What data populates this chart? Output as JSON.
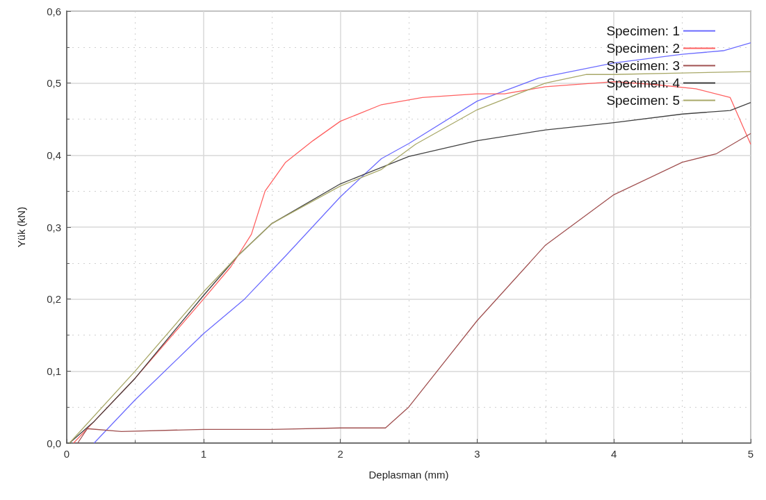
{
  "chart_data": {
    "type": "line",
    "xlabel": "Deplasman (mm)",
    "ylabel": "Yük (kN)",
    "xlim": [
      0,
      5
    ],
    "xticks": [
      0,
      1,
      2,
      3,
      4,
      5
    ],
    "ylim": [
      0,
      0.6
    ],
    "yticks": [
      {
        "value": 0,
        "label": "0,0"
      },
      {
        "value": 0.1,
        "label": "0,1"
      },
      {
        "value": 0.2,
        "label": "0,2"
      },
      {
        "value": 0.3,
        "label": "0,3"
      },
      {
        "value": 0.4,
        "label": "0,4"
      },
      {
        "value": 0.5,
        "label": "0,5"
      },
      {
        "value": 0.6,
        "label": "0,6"
      }
    ],
    "grid": true,
    "legend": "top right",
    "marker": "none",
    "line_style": "solid",
    "series": [
      {
        "name": "Specimen: 1",
        "color": "#6b6bff",
        "x": [
          0.2,
          0.5,
          1,
          1.3,
          1.6,
          2,
          2.3,
          2.5,
          3,
          3.45,
          4,
          4.5,
          4.8,
          5
        ],
        "values": [
          0,
          0.06,
          0.152,
          0.2,
          0.26,
          0.342,
          0.395,
          0.416,
          0.475,
          0.507,
          0.528,
          0.54,
          0.545,
          0.556
        ]
      },
      {
        "name": "Specimen: 2",
        "color": "#ff6060",
        "x": [
          0.05,
          0.2,
          0.5,
          1,
          1.2,
          1.35,
          1.45,
          1.6,
          1.8,
          2,
          2.3,
          2.6,
          3,
          3.2,
          3.5,
          4,
          4.3,
          4.6,
          4.85,
          5
        ],
        "values": [
          0,
          0.03,
          0.09,
          0.2,
          0.245,
          0.29,
          0.35,
          0.39,
          0.42,
          0.447,
          0.47,
          0.48,
          0.485,
          0.485,
          0.495,
          0.502,
          0.498,
          0.492,
          0.48,
          0.415
        ]
      },
      {
        "name": "Specimen: 3",
        "color": "#a05050",
        "x": [
          0.08,
          0.15,
          0.4,
          1,
          1.5,
          2,
          2.33,
          2.5,
          3,
          3.5,
          4,
          4.5,
          4.75,
          5
        ],
        "values": [
          0,
          0.02,
          0.016,
          0.019,
          0.019,
          0.021,
          0.021,
          0.05,
          0.17,
          0.275,
          0.345,
          0.39,
          0.402,
          0.43
        ]
      },
      {
        "name": "Specimen: 4",
        "color": "#404040",
        "x": [
          0.02,
          0.2,
          0.5,
          1,
          1.25,
          1.5,
          2,
          2.5,
          3,
          3.5,
          4,
          4.5,
          4.85,
          5
        ],
        "values": [
          0,
          0.03,
          0.09,
          0.205,
          0.26,
          0.305,
          0.36,
          0.398,
          0.42,
          0.435,
          0.445,
          0.457,
          0.462,
          0.473
        ]
      },
      {
        "name": "Specimen: 5",
        "color": "#a8a868",
        "x": [
          0.02,
          0.5,
          1,
          1.25,
          1.5,
          2,
          2.3,
          2.55,
          3,
          3.5,
          3.8,
          4,
          4.5,
          5
        ],
        "values": [
          0,
          0.1,
          0.21,
          0.26,
          0.305,
          0.357,
          0.38,
          0.415,
          0.463,
          0.5,
          0.512,
          0.512,
          0.514,
          0.516
        ]
      }
    ]
  }
}
